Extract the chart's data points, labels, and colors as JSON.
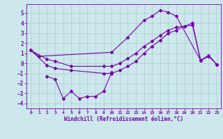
{
  "xlabel": "Windchill (Refroidissement éolien,°C)",
  "background_color": "#cce8ec",
  "grid_color": "#aacccc",
  "line_color": "#7700aa",
  "xlim": [
    -0.5,
    23.5
  ],
  "ylim": [
    -4.5,
    5.9
  ],
  "yticks": [
    -4,
    -3,
    -2,
    -1,
    0,
    1,
    2,
    3,
    4,
    5
  ],
  "xticks": [
    0,
    1,
    2,
    3,
    4,
    5,
    6,
    7,
    8,
    9,
    10,
    11,
    12,
    13,
    14,
    15,
    16,
    17,
    18,
    19,
    20,
    21,
    22,
    23
  ],
  "series": {
    "s1_x": [
      0,
      1,
      10,
      12,
      14,
      15,
      16,
      17,
      18,
      21,
      22,
      23
    ],
    "s1_y": [
      1.3,
      0.7,
      1.1,
      2.6,
      4.3,
      4.7,
      5.3,
      5.1,
      4.7,
      0.3,
      0.8,
      -0.1
    ],
    "s2_x": [
      2,
      3,
      4,
      5,
      6,
      7,
      8,
      9,
      10
    ],
    "s2_y": [
      -1.3,
      -1.6,
      -3.5,
      -2.8,
      -3.5,
      -3.3,
      -3.3,
      -2.8,
      -0.9
    ],
    "s3_x": [
      0,
      2,
      3,
      5,
      9,
      10,
      11,
      12,
      13,
      14,
      15,
      16,
      17,
      18,
      19,
      20,
      21,
      22,
      23
    ],
    "s3_y": [
      1.3,
      0.4,
      0.2,
      -0.3,
      -0.3,
      -0.3,
      0.0,
      0.5,
      1.0,
      1.7,
      2.2,
      2.8,
      3.3,
      3.6,
      3.7,
      3.8,
      0.3,
      0.7,
      -0.1
    ],
    "s4_x": [
      0,
      2,
      3,
      5,
      9,
      10,
      11,
      12,
      13,
      14,
      15,
      16,
      17,
      18,
      19,
      20,
      21,
      22,
      23
    ],
    "s4_y": [
      1.3,
      -0.2,
      -0.5,
      -0.7,
      -1.0,
      -1.0,
      -0.7,
      -0.3,
      0.2,
      1.0,
      1.7,
      2.3,
      3.0,
      3.3,
      3.7,
      4.0,
      0.3,
      0.7,
      -0.1
    ]
  }
}
